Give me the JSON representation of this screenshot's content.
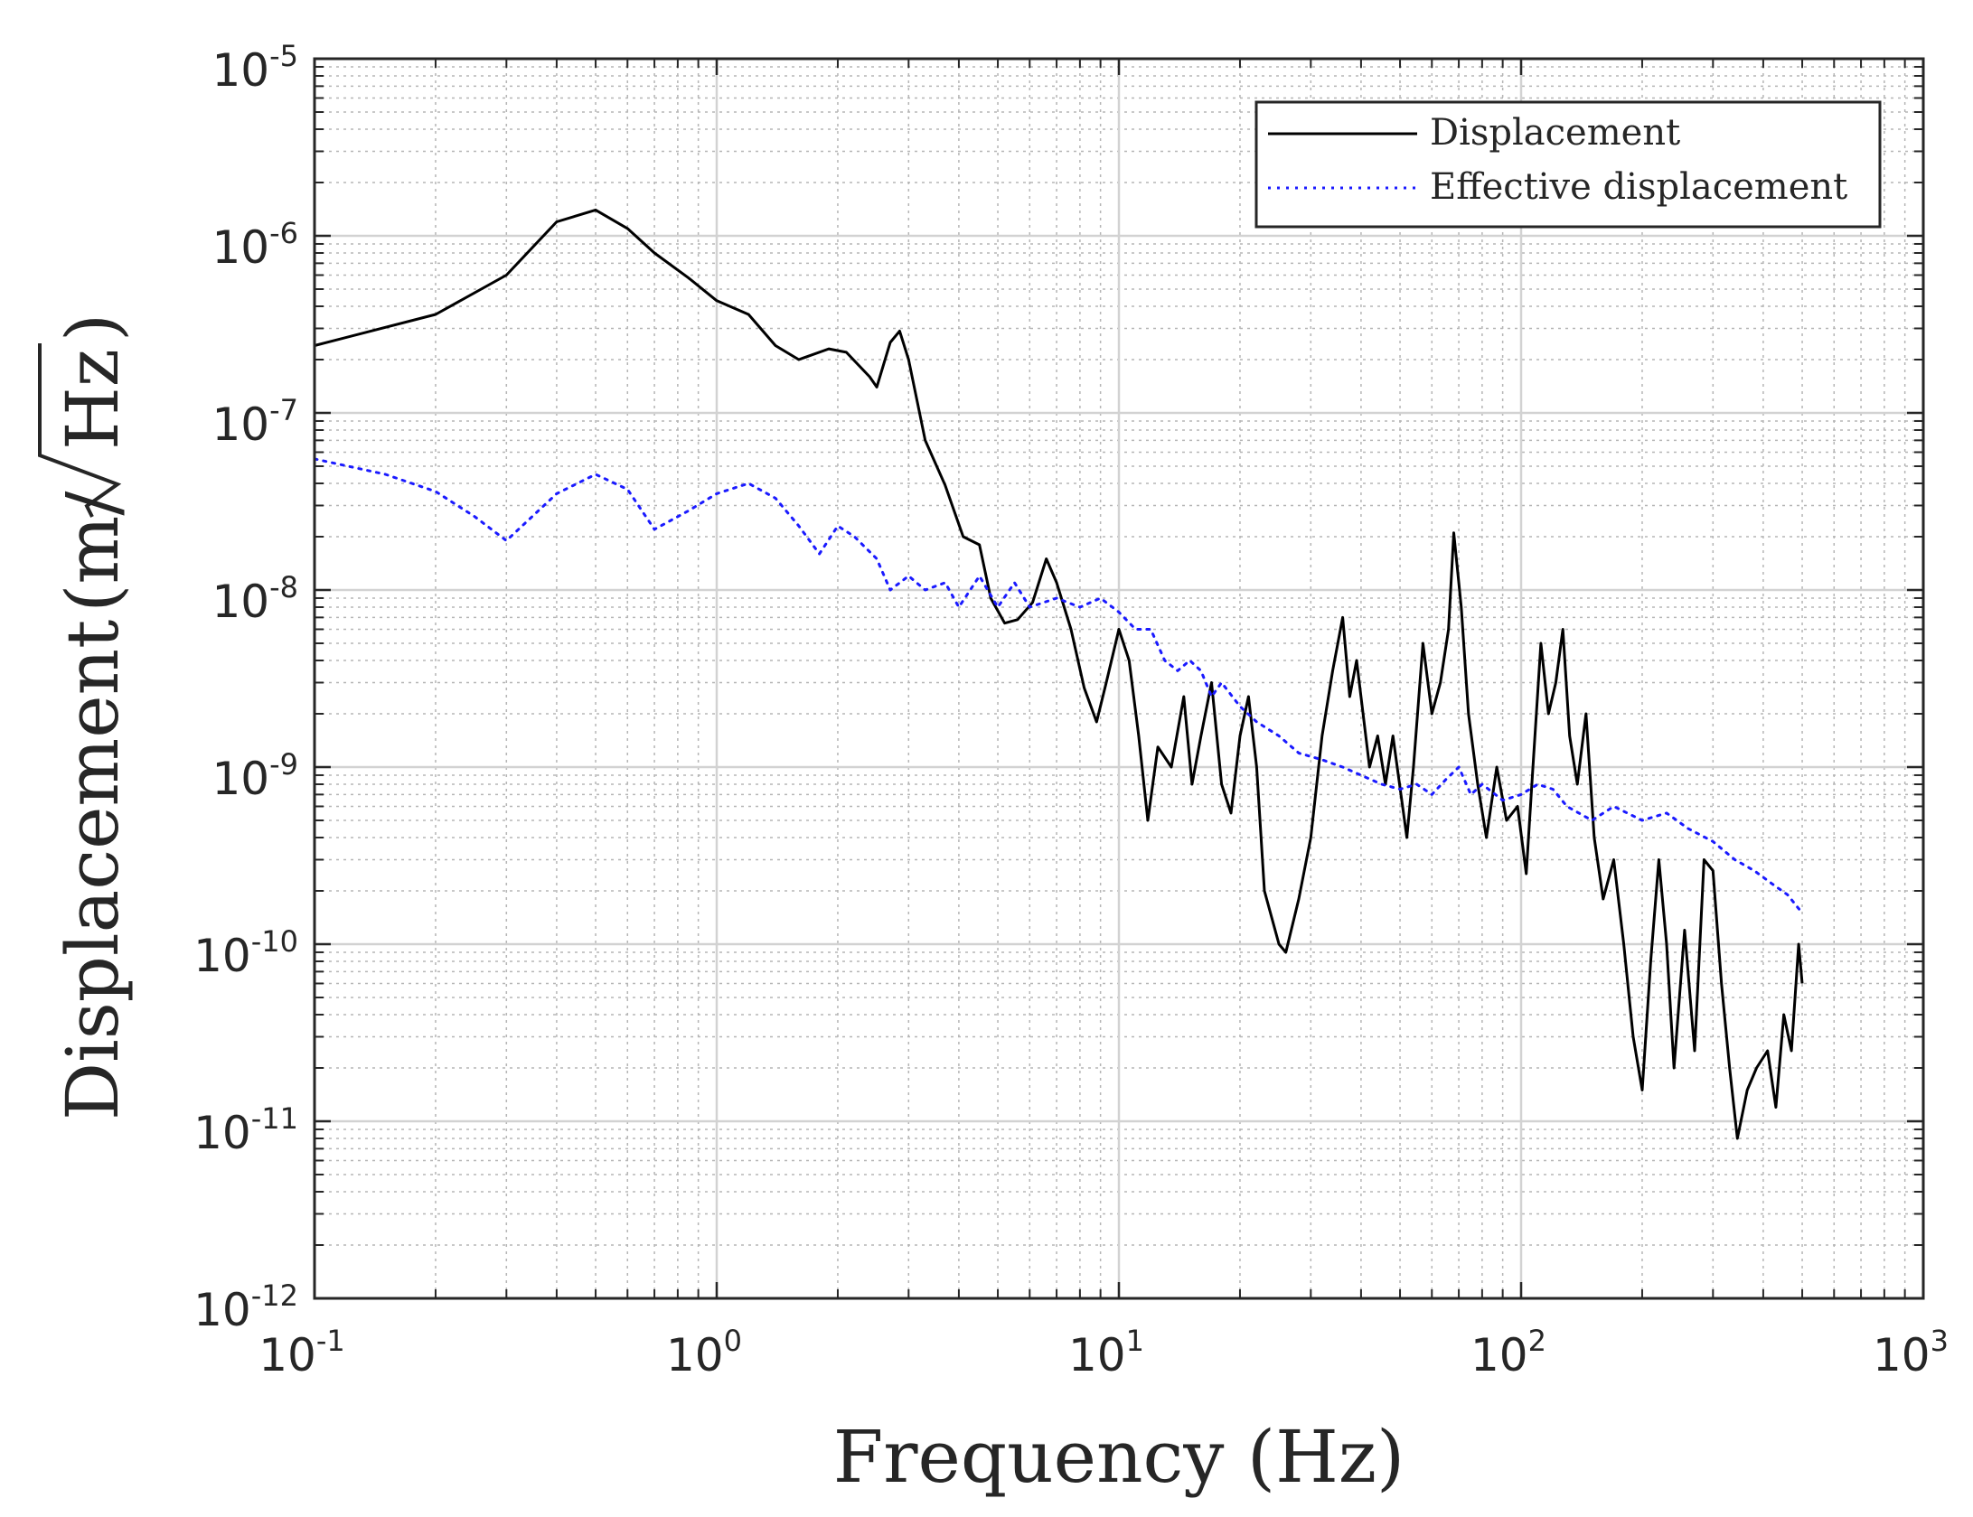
{
  "chart_data": {
    "type": "line",
    "title": "",
    "xlabel": "Frequency (Hz)",
    "ylabel_prefix": "Displacement",
    "ylabel_unit_left": "(m/",
    "ylabel_unit_root": "Hz",
    "ylabel_unit_right": ")",
    "x_scale": "log",
    "y_scale": "log",
    "xlim": [
      0.1,
      1000
    ],
    "ylim": [
      1e-12,
      1e-05
    ],
    "grid": true,
    "minor_grid": true,
    "legend_position": "top-right",
    "x_ticks": [
      {
        "value": 0.1,
        "base": "10",
        "exp": "-1"
      },
      {
        "value": 1,
        "base": "10",
        "exp": "0"
      },
      {
        "value": 10,
        "base": "10",
        "exp": "1"
      },
      {
        "value": 100,
        "base": "10",
        "exp": "2"
      },
      {
        "value": 1000,
        "base": "10",
        "exp": "3"
      }
    ],
    "y_ticks": [
      {
        "value": 1e-05,
        "base": "10",
        "exp": "-5"
      },
      {
        "value": 1e-06,
        "base": "10",
        "exp": "-6"
      },
      {
        "value": 1e-07,
        "base": "10",
        "exp": "-7"
      },
      {
        "value": 1e-08,
        "base": "10",
        "exp": "-8"
      },
      {
        "value": 1e-09,
        "base": "10",
        "exp": "-9"
      },
      {
        "value": 1e-10,
        "base": "10",
        "exp": "-10"
      },
      {
        "value": 1e-11,
        "base": "10",
        "exp": "-11"
      },
      {
        "value": 1e-12,
        "base": "10",
        "exp": "-12"
      }
    ],
    "series": [
      {
        "name": "Displacement",
        "color": "#000000",
        "style": "solid",
        "points": [
          [
            0.1,
            2.4e-07
          ],
          [
            0.2,
            3.6e-07
          ],
          [
            0.3,
            6e-07
          ],
          [
            0.4,
            1.2e-06
          ],
          [
            0.5,
            1.4e-06
          ],
          [
            0.6,
            1.1e-06
          ],
          [
            0.7,
            8e-07
          ],
          [
            0.85,
            5.8e-07
          ],
          [
            1.0,
            4.3e-07
          ],
          [
            1.2,
            3.6e-07
          ],
          [
            1.4,
            2.4e-07
          ],
          [
            1.6,
            2e-07
          ],
          [
            1.9,
            2.3e-07
          ],
          [
            2.1,
            2.2e-07
          ],
          [
            2.4,
            1.6e-07
          ],
          [
            2.5,
            1.4e-07
          ],
          [
            2.7,
            2.5e-07
          ],
          [
            2.85,
            2.9e-07
          ],
          [
            3.0,
            2e-07
          ],
          [
            3.3,
            7e-08
          ],
          [
            3.7,
            3.9e-08
          ],
          [
            4.1,
            2e-08
          ],
          [
            4.5,
            1.8e-08
          ],
          [
            4.8,
            9e-09
          ],
          [
            5.2,
            6.5e-09
          ],
          [
            5.6,
            6.8e-09
          ],
          [
            6.1,
            8.5e-09
          ],
          [
            6.6,
            1.5e-08
          ],
          [
            7.0,
            1.1e-08
          ],
          [
            7.6,
            6e-09
          ],
          [
            8.2,
            2.8e-09
          ],
          [
            8.8,
            1.8e-09
          ],
          [
            9.3,
            3e-09
          ],
          [
            10.0,
            6e-09
          ],
          [
            10.6,
            4e-09
          ],
          [
            11.2,
            1.5e-09
          ],
          [
            11.8,
            5e-10
          ],
          [
            12.5,
            1.3e-09
          ],
          [
            13.5,
            1e-09
          ],
          [
            14.5,
            2.5e-09
          ],
          [
            15.2,
            8e-10
          ],
          [
            16.0,
            1.5e-09
          ],
          [
            17.0,
            3e-09
          ],
          [
            18.0,
            8e-10
          ],
          [
            19.0,
            5.5e-10
          ],
          [
            20.0,
            1.5e-09
          ],
          [
            21.0,
            2.5e-09
          ],
          [
            22.0,
            1e-09
          ],
          [
            23.0,
            2e-10
          ],
          [
            25.0,
            1e-10
          ],
          [
            26.0,
            9e-11
          ],
          [
            28.0,
            1.8e-10
          ],
          [
            30.0,
            4e-10
          ],
          [
            32.0,
            1.5e-09
          ],
          [
            34.0,
            3.5e-09
          ],
          [
            36.0,
            7e-09
          ],
          [
            37.5,
            2.5e-09
          ],
          [
            39.0,
            4e-09
          ],
          [
            42.0,
            1e-09
          ],
          [
            44.0,
            1.5e-09
          ],
          [
            46.0,
            8e-10
          ],
          [
            48.0,
            1.5e-09
          ],
          [
            52.0,
            4e-10
          ],
          [
            54.0,
            1e-09
          ],
          [
            57.0,
            5e-09
          ],
          [
            60.0,
            2e-09
          ],
          [
            63.0,
            3e-09
          ],
          [
            66.0,
            6e-09
          ],
          [
            68.0,
            2.1e-08
          ],
          [
            71.0,
            8e-09
          ],
          [
            74.0,
            2e-09
          ],
          [
            78.0,
            8e-10
          ],
          [
            82.0,
            4e-10
          ],
          [
            87.0,
            1e-09
          ],
          [
            92.0,
            5e-10
          ],
          [
            98.0,
            6e-10
          ],
          [
            103.0,
            2.5e-10
          ],
          [
            107.0,
            1e-09
          ],
          [
            112.0,
            5e-09
          ],
          [
            117.0,
            2e-09
          ],
          [
            122.0,
            3e-09
          ],
          [
            127.0,
            6e-09
          ],
          [
            132.0,
            1.5e-09
          ],
          [
            138.0,
            8e-10
          ],
          [
            145.0,
            2e-09
          ],
          [
            152.0,
            4e-10
          ],
          [
            160.0,
            1.8e-10
          ],
          [
            170.0,
            3e-10
          ],
          [
            180.0,
            1e-10
          ],
          [
            190.0,
            3e-11
          ],
          [
            200.0,
            1.5e-11
          ],
          [
            210.0,
            8e-11
          ],
          [
            220.0,
            3e-10
          ],
          [
            230.0,
            1e-10
          ],
          [
            240.0,
            2e-11
          ],
          [
            255.0,
            1.2e-10
          ],
          [
            270.0,
            2.5e-11
          ],
          [
            285.0,
            3e-10
          ],
          [
            300.0,
            2.6e-10
          ],
          [
            315.0,
            6e-11
          ],
          [
            330.0,
            2e-11
          ],
          [
            345.0,
            8e-12
          ],
          [
            365.0,
            1.5e-11
          ],
          [
            385.0,
            2e-11
          ],
          [
            410.0,
            2.5e-11
          ],
          [
            430.0,
            1.2e-11
          ],
          [
            450.0,
            4e-11
          ],
          [
            470.0,
            2.5e-11
          ],
          [
            490.0,
            1e-10
          ],
          [
            500.0,
            6e-11
          ]
        ]
      },
      {
        "name": "Effective displacement",
        "color": "#1a1aff",
        "style": "dotted",
        "points": [
          [
            0.1,
            5.5e-08
          ],
          [
            0.15,
            4.5e-08
          ],
          [
            0.2,
            3.6e-08
          ],
          [
            0.25,
            2.6e-08
          ],
          [
            0.3,
            1.9e-08
          ],
          [
            0.4,
            3.5e-08
          ],
          [
            0.5,
            4.5e-08
          ],
          [
            0.6,
            3.7e-08
          ],
          [
            0.7,
            2.2e-08
          ],
          [
            0.85,
            2.8e-08
          ],
          [
            1.0,
            3.5e-08
          ],
          [
            1.2,
            4e-08
          ],
          [
            1.4,
            3.3e-08
          ],
          [
            1.6,
            2.3e-08
          ],
          [
            1.8,
            1.6e-08
          ],
          [
            2.0,
            2.3e-08
          ],
          [
            2.2,
            2e-08
          ],
          [
            2.5,
            1.5e-08
          ],
          [
            2.7,
            1e-08
          ],
          [
            3.0,
            1.2e-08
          ],
          [
            3.3,
            1e-08
          ],
          [
            3.7,
            1.1e-08
          ],
          [
            4.0,
            8e-09
          ],
          [
            4.5,
            1.2e-08
          ],
          [
            5.0,
            8e-09
          ],
          [
            5.5,
            1.1e-08
          ],
          [
            6.0,
            8e-09
          ],
          [
            7.0,
            9e-09
          ],
          [
            8.0,
            8e-09
          ],
          [
            9.0,
            9e-09
          ],
          [
            10.0,
            7.5e-09
          ],
          [
            11.0,
            6e-09
          ],
          [
            12.0,
            6e-09
          ],
          [
            13.0,
            4e-09
          ],
          [
            14.0,
            3.5e-09
          ],
          [
            15.0,
            4e-09
          ],
          [
            16.0,
            3.5e-09
          ],
          [
            17.0,
            2.5e-09
          ],
          [
            18.0,
            3e-09
          ],
          [
            20.0,
            2.2e-09
          ],
          [
            22.0,
            1.8e-09
          ],
          [
            25.0,
            1.5e-09
          ],
          [
            28.0,
            1.2e-09
          ],
          [
            32.0,
            1.1e-09
          ],
          [
            36.0,
            1e-09
          ],
          [
            40.0,
            9e-10
          ],
          [
            45.0,
            8e-10
          ],
          [
            50.0,
            7.5e-10
          ],
          [
            55.0,
            8e-10
          ],
          [
            60.0,
            7e-10
          ],
          [
            65.0,
            8.5e-10
          ],
          [
            70.0,
            1e-09
          ],
          [
            75.0,
            7e-10
          ],
          [
            80.0,
            8e-10
          ],
          [
            90.0,
            6.5e-10
          ],
          [
            100.0,
            7e-10
          ],
          [
            110.0,
            8e-10
          ],
          [
            120.0,
            7.5e-10
          ],
          [
            130.0,
            6e-10
          ],
          [
            150.0,
            5e-10
          ],
          [
            170.0,
            6e-10
          ],
          [
            200.0,
            5e-10
          ],
          [
            230.0,
            5.5e-10
          ],
          [
            260.0,
            4.5e-10
          ],
          [
            300.0,
            3.8e-10
          ],
          [
            340.0,
            3e-10
          ],
          [
            380.0,
            2.6e-10
          ],
          [
            420.0,
            2.2e-10
          ],
          [
            460.0,
            1.9e-10
          ],
          [
            500.0,
            1.5e-10
          ]
        ]
      }
    ]
  }
}
